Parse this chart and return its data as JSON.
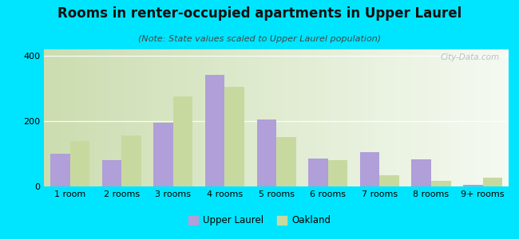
{
  "title": "Rooms in renter-occupied apartments in Upper Laurel",
  "subtitle": "(Note: State values scaled to Upper Laurel population)",
  "categories": [
    "1 room",
    "2 rooms",
    "3 rooms",
    "4 rooms",
    "5 rooms",
    "6 rooms",
    "7 rooms",
    "8 rooms",
    "9+ rooms"
  ],
  "upper_laurel": [
    100,
    80,
    195,
    340,
    205,
    85,
    105,
    82,
    5
  ],
  "oakland": [
    140,
    155,
    275,
    305,
    150,
    80,
    35,
    18,
    28
  ],
  "upper_laurel_color": "#b09fd8",
  "oakland_color": "#c8d9a0",
  "background_outer": "#00e5ff",
  "ylim": [
    0,
    420
  ],
  "yticks": [
    0,
    200,
    400
  ],
  "bar_width": 0.38,
  "watermark": "City-Data.com",
  "legend_upper_laurel": "Upper Laurel",
  "legend_oakland": "Oakland",
  "title_fontsize": 12,
  "subtitle_fontsize": 8,
  "tick_fontsize": 8
}
